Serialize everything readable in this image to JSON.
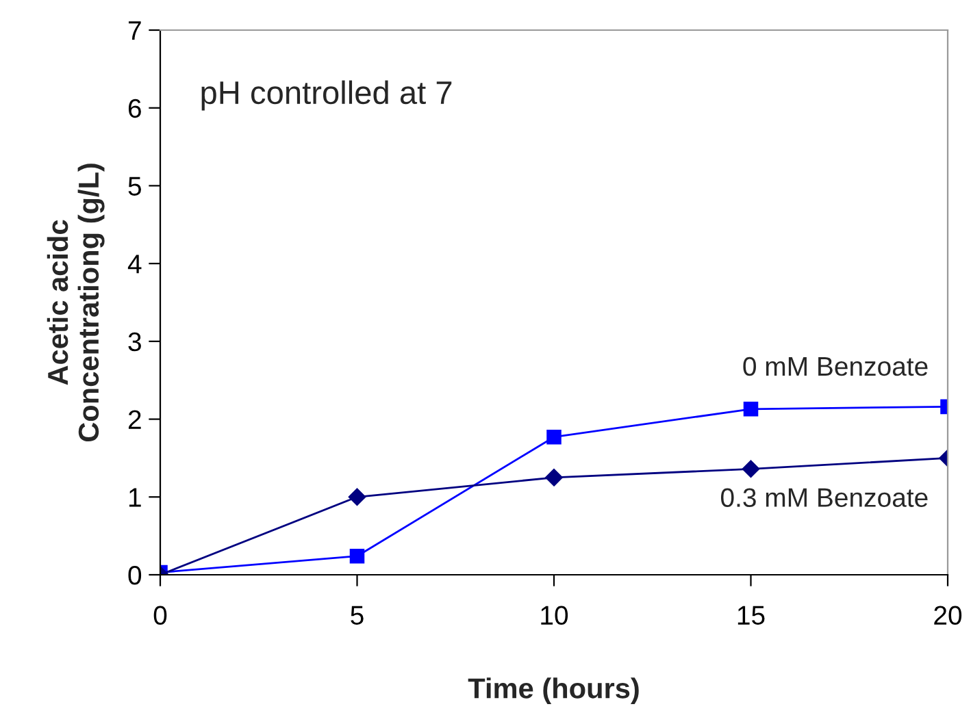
{
  "chart_data": {
    "type": "line",
    "xlabel": "Time (hours)",
    "ylabel": "Acetic acidc\nConcentrationg (g/L)",
    "x": [
      0,
      5,
      10,
      15,
      20
    ],
    "series": [
      {
        "name": "0 mM Benzoate",
        "color": "#0000ff",
        "marker": "square",
        "values": [
          0.03,
          0.24,
          1.77,
          2.13,
          2.16
        ]
      },
      {
        "name": "0.3 mM Benzoate",
        "color": "#000080",
        "marker": "diamond",
        "values": [
          0,
          1.0,
          1.25,
          1.36,
          1.5
        ]
      }
    ],
    "xlim": [
      0,
      20
    ],
    "xticks": [
      0,
      5,
      10,
      15,
      20
    ],
    "ylim": [
      0,
      7
    ],
    "yticks": [
      0,
      1,
      2,
      3,
      4,
      5,
      6,
      7
    ],
    "grid": false,
    "legend": false,
    "annotations": [
      "pH controlled at 7"
    ]
  }
}
